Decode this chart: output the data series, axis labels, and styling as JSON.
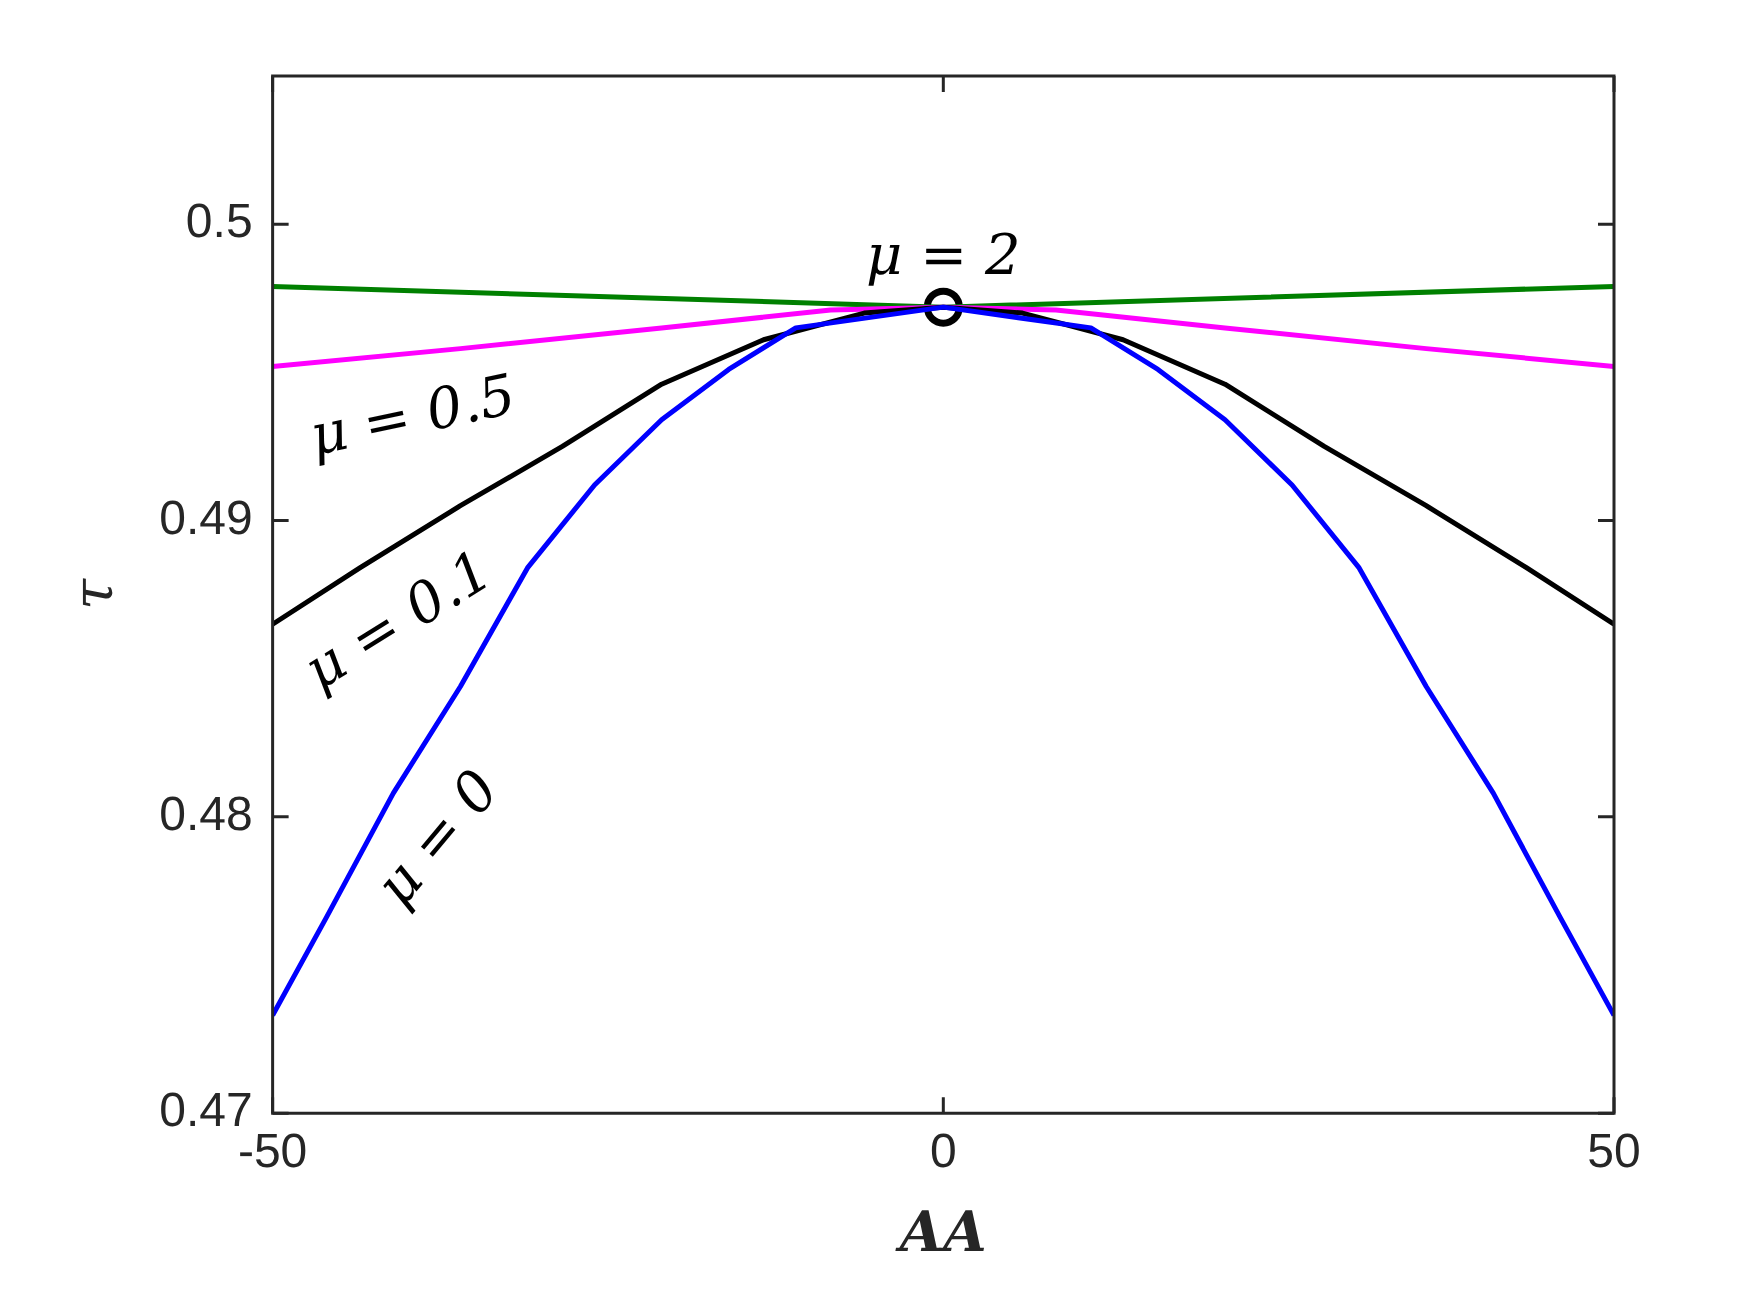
{
  "chart_data": {
    "type": "line",
    "xlabel": "AA",
    "ylabel": "τ",
    "xlim": [
      -50,
      50
    ],
    "xticks": [
      -50,
      0,
      50
    ],
    "ylim": [
      0.47,
      0.505
    ],
    "yticks": [
      0.47,
      0.48,
      0.49,
      0.5
    ],
    "grid": false,
    "legend": false,
    "marker": "none",
    "line_style": "solid",
    "series": [
      {
        "name": "μ = 0",
        "color": "#0000ff",
        "x": [
          -50,
          -46,
          -41,
          -36,
          -31,
          -26,
          -21,
          -16,
          -11,
          0,
          11,
          16,
          21,
          26,
          31,
          36,
          41,
          46,
          50
        ],
        "values": [
          0.4733,
          0.4766,
          0.4808,
          0.4844,
          0.4884,
          0.4912,
          0.4934,
          0.4951,
          0.4965,
          0.4972,
          0.4965,
          0.4951,
          0.4934,
          0.4912,
          0.4884,
          0.4844,
          0.4808,
          0.4766,
          0.4733
        ]
      },
      {
        "name": "μ = 0.1",
        "color": "#000000",
        "x": [
          -50,
          -43.5,
          -36,
          -28.4,
          -21,
          -13.4,
          -5.9,
          0,
          5.9,
          13.4,
          21,
          28.4,
          36,
          43.5,
          50
        ],
        "values": [
          0.4865,
          0.4884,
          0.4905,
          0.4925,
          0.4946,
          0.4961,
          0.497,
          0.4972,
          0.497,
          0.4961,
          0.4946,
          0.4925,
          0.4905,
          0.4884,
          0.4865
        ]
      },
      {
        "name": "μ = 0.5",
        "color": "#ff00ff",
        "x": [
          -50,
          -36,
          -21,
          -8.4,
          0,
          8.4,
          21,
          36,
          50
        ],
        "values": [
          0.4952,
          0.4958,
          0.4965,
          0.4971,
          0.4972,
          0.4971,
          0.4965,
          0.4958,
          0.4952
        ]
      },
      {
        "name": "μ = 2",
        "color": "#008000",
        "x": [
          -50,
          0,
          50
        ],
        "values": [
          0.4979,
          0.4972,
          0.4979
        ]
      },
      {
        "type": "scatter",
        "marker": "circle",
        "color": "#000000",
        "x": [
          0
        ],
        "values": [
          0.4972
        ]
      }
    ]
  }
}
